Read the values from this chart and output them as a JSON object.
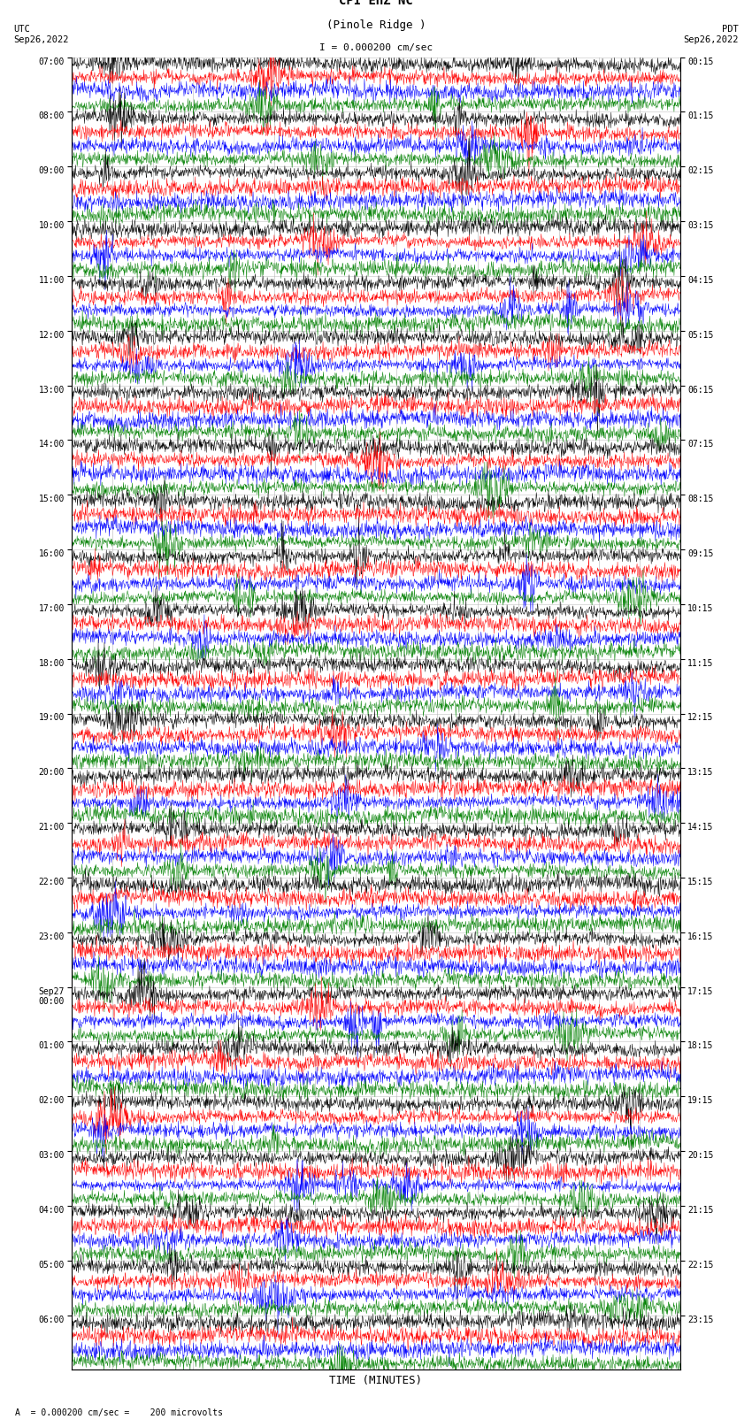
{
  "title_line1": "CPI EHZ NC",
  "title_line2": "(Pinole Ridge )",
  "scale_label": "I = 0.000200 cm/sec",
  "bottom_label": "= 0.000200 cm/sec =    200 microvolts",
  "utc_label": "UTC\nSep26,2022",
  "pdt_label": "PDT\nSep26,2022",
  "xlabel": "TIME (MINUTES)",
  "left_times": [
    "07:00",
    "08:00",
    "09:00",
    "10:00",
    "11:00",
    "12:00",
    "13:00",
    "14:00",
    "15:00",
    "16:00",
    "17:00",
    "18:00",
    "19:00",
    "20:00",
    "21:00",
    "22:00",
    "23:00",
    "Sep27\n00:00",
    "01:00",
    "02:00",
    "03:00",
    "04:00",
    "05:00",
    "06:00"
  ],
  "right_times": [
    "00:15",
    "01:15",
    "02:15",
    "03:15",
    "04:15",
    "05:15",
    "06:15",
    "07:15",
    "08:15",
    "09:15",
    "10:15",
    "11:15",
    "12:15",
    "13:15",
    "14:15",
    "15:15",
    "16:15",
    "17:15",
    "18:15",
    "19:15",
    "20:15",
    "21:15",
    "22:15",
    "23:15"
  ],
  "colors": [
    "black",
    "red",
    "blue",
    "green"
  ],
  "n_hours": 24,
  "n_minutes": 15,
  "samples_per_row": 1500,
  "background_color": "white",
  "grid_color": "#aaaaaa"
}
